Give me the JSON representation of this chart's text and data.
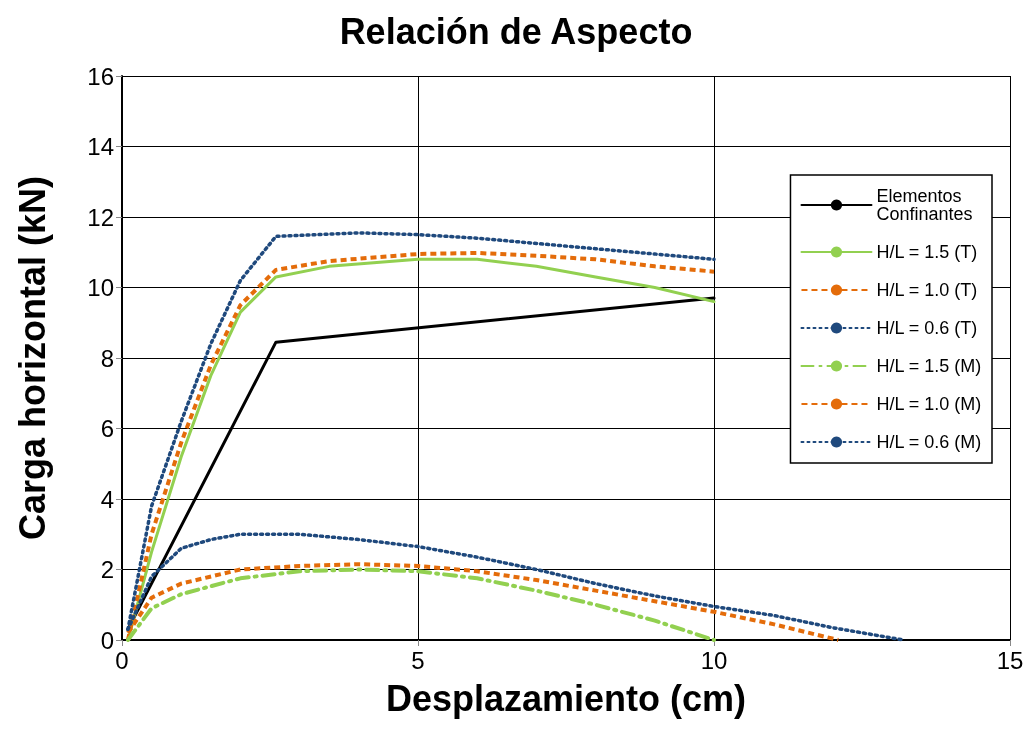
{
  "chart_data": {
    "type": "line",
    "title": "Relación de Aspecto",
    "xlabel": "Desplazamiento (cm)",
    "ylabel": "Carga horizontal (kN)",
    "xlim": [
      0,
      15
    ],
    "xticks": [
      0,
      5,
      10,
      15
    ],
    "ylim": [
      0,
      16
    ],
    "yticks": [
      0,
      2,
      4,
      6,
      8,
      10,
      12,
      14,
      16
    ],
    "grid": true,
    "legend": "right",
    "marker": "none",
    "series": [
      {
        "name": "Elementos Confinantes",
        "color": "#000000",
        "line_style": "solid",
        "x": [
          0.1,
          2.6,
          10
        ],
        "values": [
          0.3,
          8.45,
          9.7
        ]
      },
      {
        "name": "H/L = 1.5 (T)",
        "color": "#92d050",
        "line_style": "solid",
        "x": [
          0.1,
          0.5,
          1,
          1.5,
          2,
          2.6,
          3.5,
          5,
          6,
          7,
          8,
          9,
          10
        ],
        "values": [
          0,
          2.5,
          5.2,
          7.5,
          9.3,
          10.3,
          10.6,
          10.8,
          10.8,
          10.6,
          10.3,
          10.0,
          9.6
        ]
      },
      {
        "name": "H/L = 1.0 (T)",
        "color": "#e46c0a",
        "line_style": "dashed",
        "x": [
          0.1,
          0.5,
          1,
          1.5,
          2,
          2.6,
          3.5,
          5,
          6,
          7,
          8,
          9,
          10
        ],
        "values": [
          0,
          3,
          5.6,
          7.8,
          9.5,
          10.5,
          10.75,
          10.95,
          10.98,
          10.9,
          10.8,
          10.6,
          10.45
        ]
      },
      {
        "name": "H/L = 0.6 (T)",
        "color": "#1f497d",
        "line_style": "dotted",
        "x": [
          0.1,
          0.5,
          1,
          1.5,
          2,
          2.6,
          4,
          5,
          6,
          7,
          8,
          9,
          10
        ],
        "values": [
          0.3,
          3.8,
          6.2,
          8.4,
          10.2,
          11.45,
          11.55,
          11.5,
          11.4,
          11.25,
          11.1,
          10.95,
          10.8
        ]
      },
      {
        "name": "H/L = 1.5 (M)",
        "color": "#92d050",
        "line_style": "dashdot",
        "x": [
          0.1,
          0.5,
          1,
          2,
          3,
          4,
          5,
          6,
          7,
          8,
          9,
          10
        ],
        "values": [
          0,
          0.9,
          1.3,
          1.75,
          1.95,
          2.0,
          1.95,
          1.75,
          1.4,
          1.0,
          0.55,
          0
        ]
      },
      {
        "name": "H/L = 1.0 (M)",
        "color": "#e46c0a",
        "line_style": "dashed",
        "x": [
          0.1,
          0.5,
          1,
          2,
          3,
          4,
          5,
          6,
          7,
          8,
          9,
          10,
          11,
          12.1
        ],
        "values": [
          0.2,
          1.2,
          1.6,
          2.0,
          2.1,
          2.15,
          2.1,
          1.95,
          1.7,
          1.4,
          1.1,
          0.8,
          0.45,
          0
        ]
      },
      {
        "name": "H/L = 0.6 (M)",
        "color": "#1f497d",
        "line_style": "dotted",
        "x": [
          0.1,
          0.5,
          1,
          1.5,
          2,
          3,
          4,
          5,
          6,
          7,
          8,
          9,
          10,
          11,
          12,
          13.2
        ],
        "values": [
          0.3,
          1.8,
          2.6,
          2.85,
          3.0,
          3.0,
          2.85,
          2.65,
          2.35,
          2.0,
          1.6,
          1.25,
          0.95,
          0.7,
          0.35,
          0
        ]
      }
    ]
  }
}
